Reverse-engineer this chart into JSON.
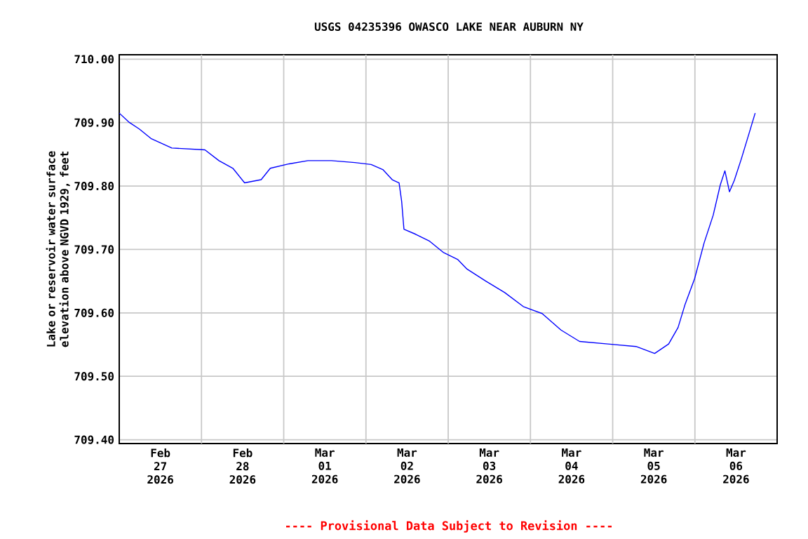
{
  "chart_data": {
    "type": "line",
    "title": "USGS 04235396 OWASCO LAKE NEAR AUBURN NY",
    "ylabel": "Lake or reservoir water surface elevation above NGVD 1929, feet",
    "annotations": [
      "---- Provisional Data Subject to Revision ----"
    ],
    "color": "#0000ff",
    "grid": true,
    "xlim": [
      "2026-02-27T00:00",
      "2026-03-07T00:00"
    ],
    "xticks": [
      {
        "value": "2026-02-27T12:00",
        "label": "Feb 27 2026"
      },
      {
        "value": "2026-02-28T12:00",
        "label": "Feb 28 2026"
      },
      {
        "value": "2026-03-01T12:00",
        "label": "Mar 01 2026"
      },
      {
        "value": "2026-03-02T12:00",
        "label": "Mar 02 2026"
      },
      {
        "value": "2026-03-03T12:00",
        "label": "Mar 03 2026"
      },
      {
        "value": "2026-03-04T12:00",
        "label": "Mar 04 2026"
      },
      {
        "value": "2026-03-05T12:00",
        "label": "Mar 05 2026"
      },
      {
        "value": "2026-03-06T12:00",
        "label": "Mar 06 2026"
      },
      {
        "value": "2026-02-28T00:00",
        "label": null
      },
      {
        "value": "2026-03-01T00:00",
        "label": null
      },
      {
        "value": "2026-03-02T00:00",
        "label": null
      },
      {
        "value": "2026-03-03T00:00",
        "label": null
      },
      {
        "value": "2026-03-04T00:00",
        "label": null
      },
      {
        "value": "2026-03-05T00:00",
        "label": null
      },
      {
        "value": "2026-03-06T00:00",
        "label": null
      }
    ],
    "ylim": [
      709.394,
      710.007
    ],
    "yticks": [
      {
        "value": 709.4,
        "label": "709.40"
      },
      {
        "value": 709.5,
        "label": "709.50"
      },
      {
        "value": 709.6,
        "label": "709.60"
      },
      {
        "value": 709.7,
        "label": "709.70"
      },
      {
        "value": 709.8,
        "label": "709.80"
      },
      {
        "value": 709.9,
        "label": "709.90"
      },
      {
        "value": 710.0,
        "label": "710.00"
      }
    ],
    "x": [
      "2026-02-27T00:00",
      "2026-02-27T03:00",
      "2026-02-27T05:50",
      "2026-02-27T09:15",
      "2026-02-27T15:20",
      "2026-02-28T01:00",
      "2026-02-28T05:05",
      "2026-02-28T09:10",
      "2026-02-28T12:35",
      "2026-02-28T17:25",
      "2026-02-28T20:05",
      "2026-03-01T01:35",
      "2026-03-01T07:05",
      "2026-03-01T13:55",
      "2026-03-01T20:45",
      "2026-03-02T01:30",
      "2026-03-02T04:55",
      "2026-03-02T07:40",
      "2026-03-02T09:40",
      "2026-03-02T10:25",
      "2026-03-02T11:05",
      "2026-03-02T14:30",
      "2026-03-02T18:35",
      "2026-03-02T22:40",
      "2026-03-03T02:50",
      "2026-03-03T05:30",
      "2026-03-03T11:00",
      "2026-03-03T16:30",
      "2026-03-03T21:55",
      "2026-03-04T03:25",
      "2026-03-04T08:55",
      "2026-03-04T14:20",
      "2026-03-04T22:35",
      "2026-03-05T06:50",
      "2026-03-05T12:15",
      "2026-03-05T16:20",
      "2026-03-05T19:05",
      "2026-03-05T21:10",
      "2026-03-05T23:55",
      "2026-03-06T02:40",
      "2026-03-06T05:20",
      "2026-03-06T07:25",
      "2026-03-06T08:45",
      "2026-03-06T10:05",
      "2026-03-06T11:30",
      "2026-03-06T13:30",
      "2026-03-06T15:35",
      "2026-03-06T17:35"
    ],
    "values": [
      709.915,
      709.9,
      709.89,
      709.875,
      709.86,
      709.857,
      709.84,
      709.828,
      709.805,
      709.81,
      709.828,
      709.835,
      709.84,
      709.84,
      709.837,
      709.834,
      709.826,
      709.81,
      709.805,
      709.776,
      709.732,
      709.724,
      709.713,
      709.695,
      709.684,
      709.669,
      709.65,
      709.632,
      709.61,
      709.599,
      709.573,
      709.555,
      709.551,
      709.547,
      709.536,
      709.551,
      709.577,
      709.614,
      709.654,
      709.71,
      709.754,
      709.802,
      709.824,
      709.791,
      709.809,
      709.842,
      709.879,
      709.915
    ]
  }
}
